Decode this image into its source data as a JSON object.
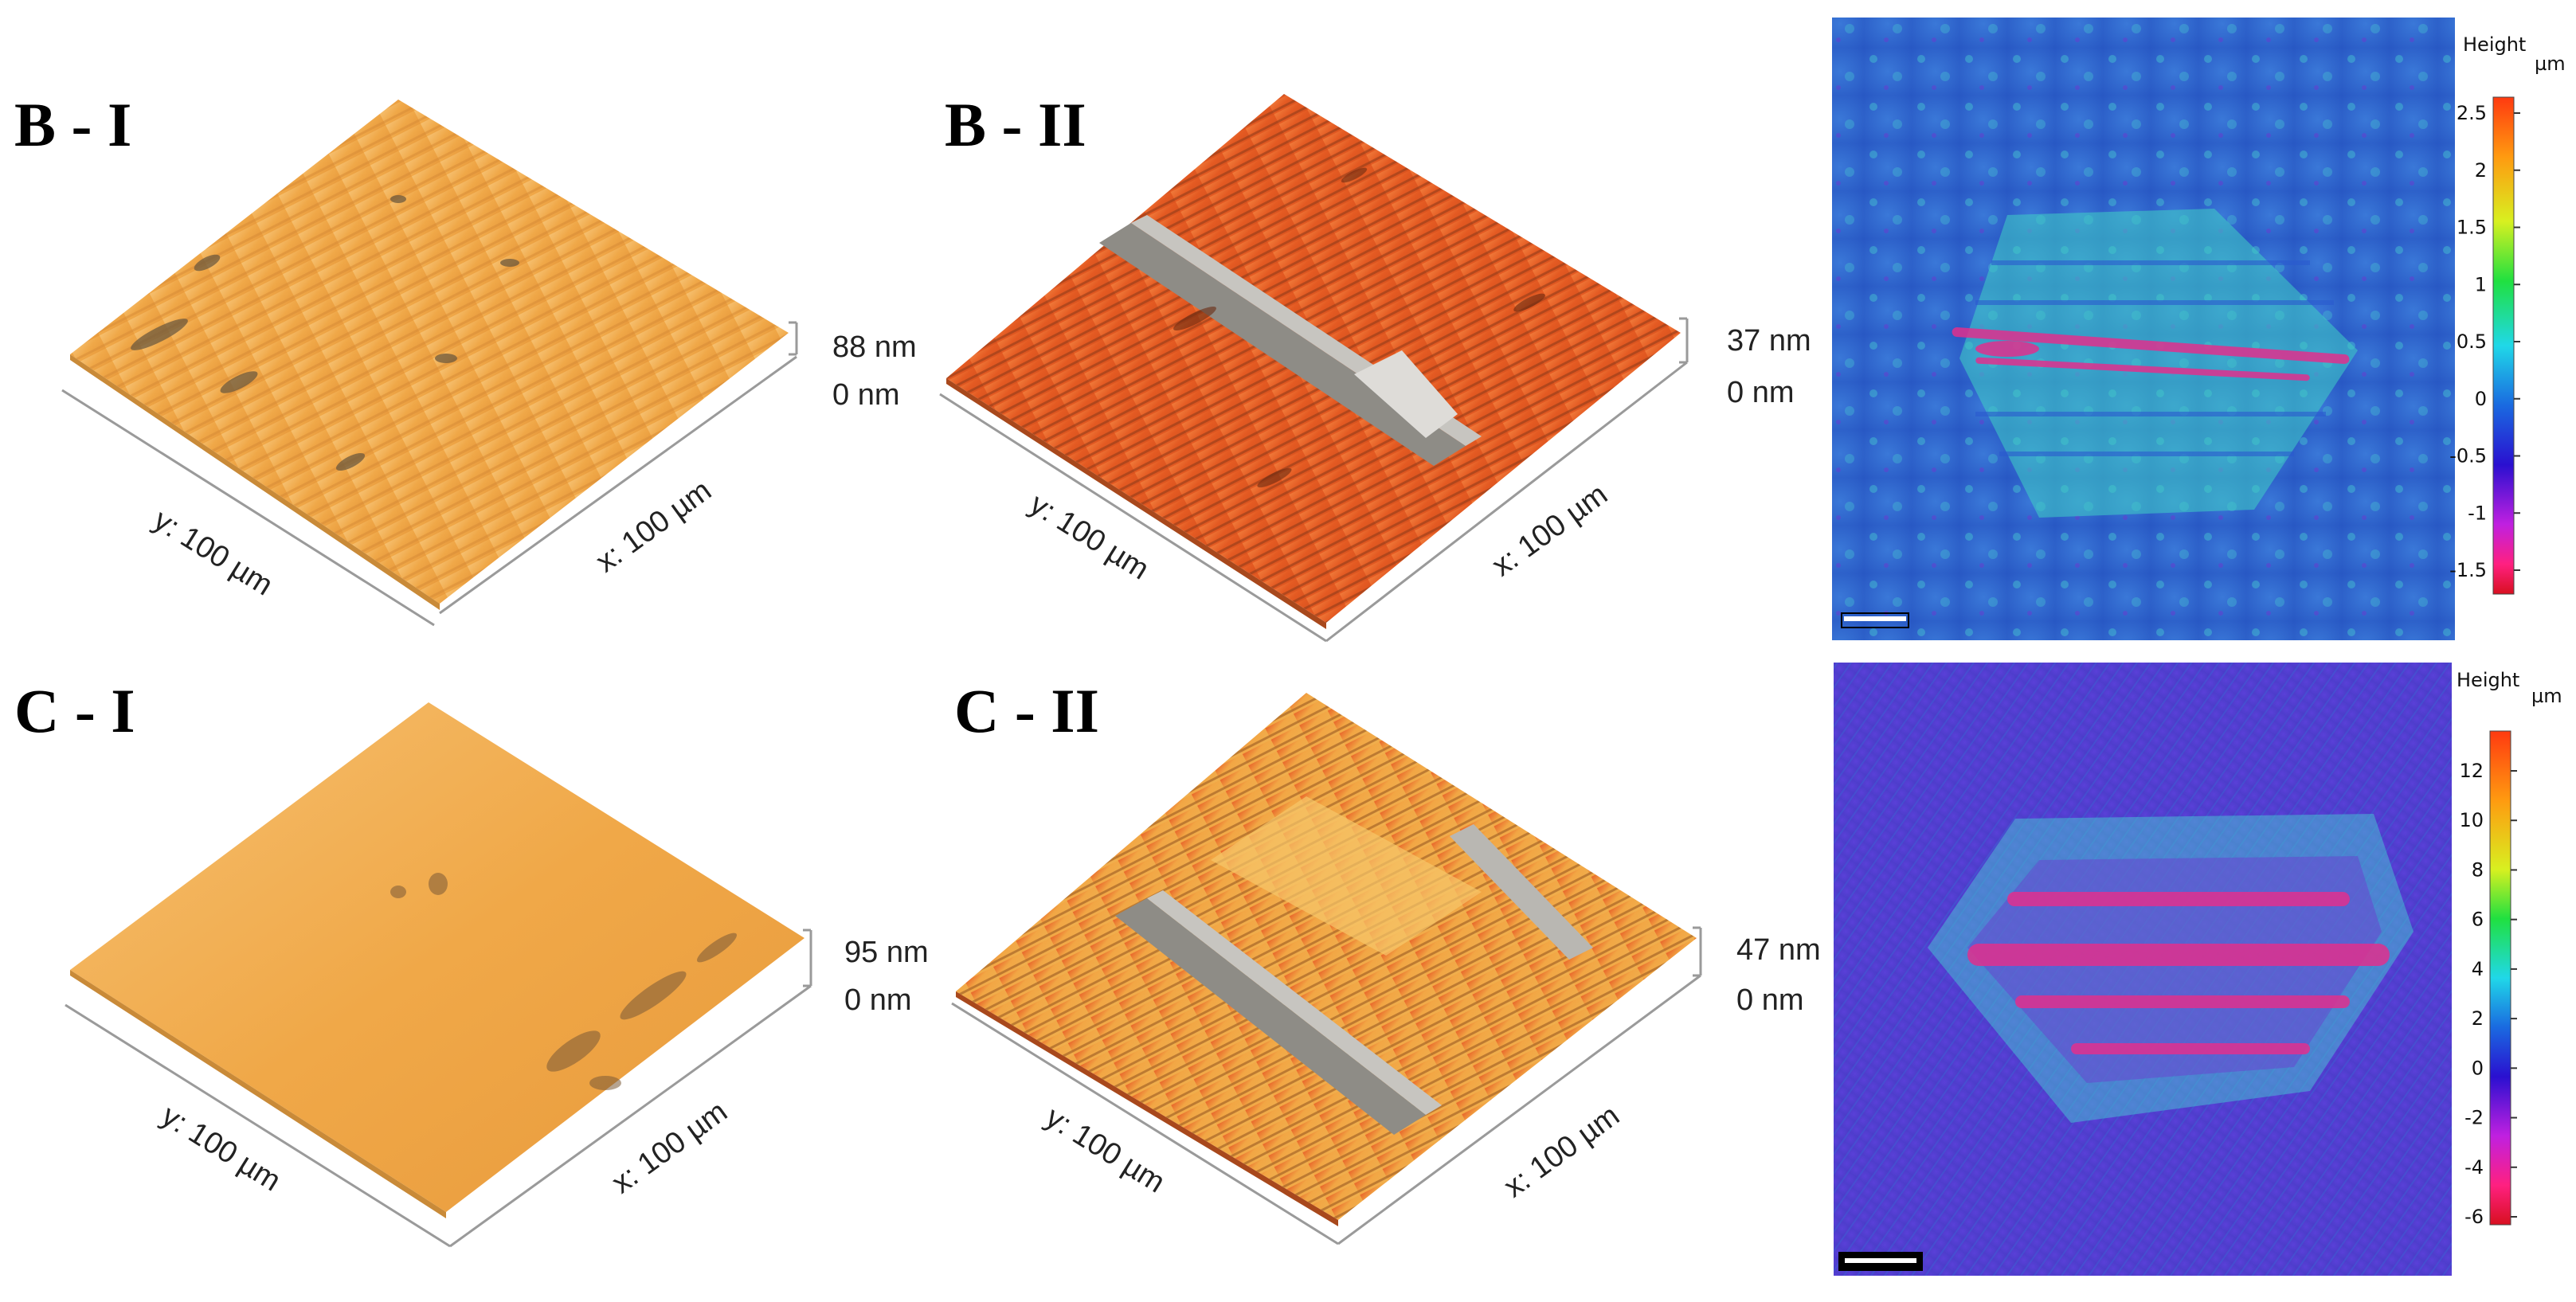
{
  "panels": {
    "b1": {
      "title": "B - I",
      "scale_top": "88 nm",
      "scale_bottom": "0 nm",
      "y_axis": "y: 100 µm",
      "x_axis": "x: 100 µm"
    },
    "b2": {
      "title": "B - II",
      "scale_top": "37 nm",
      "scale_bottom": "0 nm",
      "y_axis": "y: 100 µm",
      "x_axis": "x: 100 µm"
    },
    "c1": {
      "title": "C - I",
      "scale_top": "95 nm",
      "scale_bottom": "0 nm",
      "y_axis": "y: 100 µm",
      "x_axis": "x: 100 µm"
    },
    "c2": {
      "title": "C - II",
      "scale_top": "47 nm",
      "scale_bottom": "0 nm",
      "y_axis": "y: 100 µm",
      "x_axis": "x: 100 µm"
    }
  },
  "height_maps": {
    "top": {
      "title": "Height",
      "unit": "µm",
      "ticks": [
        "2.5",
        "2",
        "1.5",
        "1",
        "0.5",
        "0",
        "-0.5",
        "-1",
        "-1.5"
      ]
    },
    "bottom": {
      "title": "Height",
      "unit": "µm",
      "ticks": [
        "12",
        "10",
        "8",
        "6",
        "4",
        "2",
        "0",
        "-2",
        "-4",
        "-6"
      ]
    }
  },
  "colors": {
    "surface_light": "#f3b24c",
    "surface_worn": "#e8622a",
    "map_blue": "#2f5fd0",
    "map_cyan": "#46d7d2",
    "map_magenta": "#e0308e"
  }
}
